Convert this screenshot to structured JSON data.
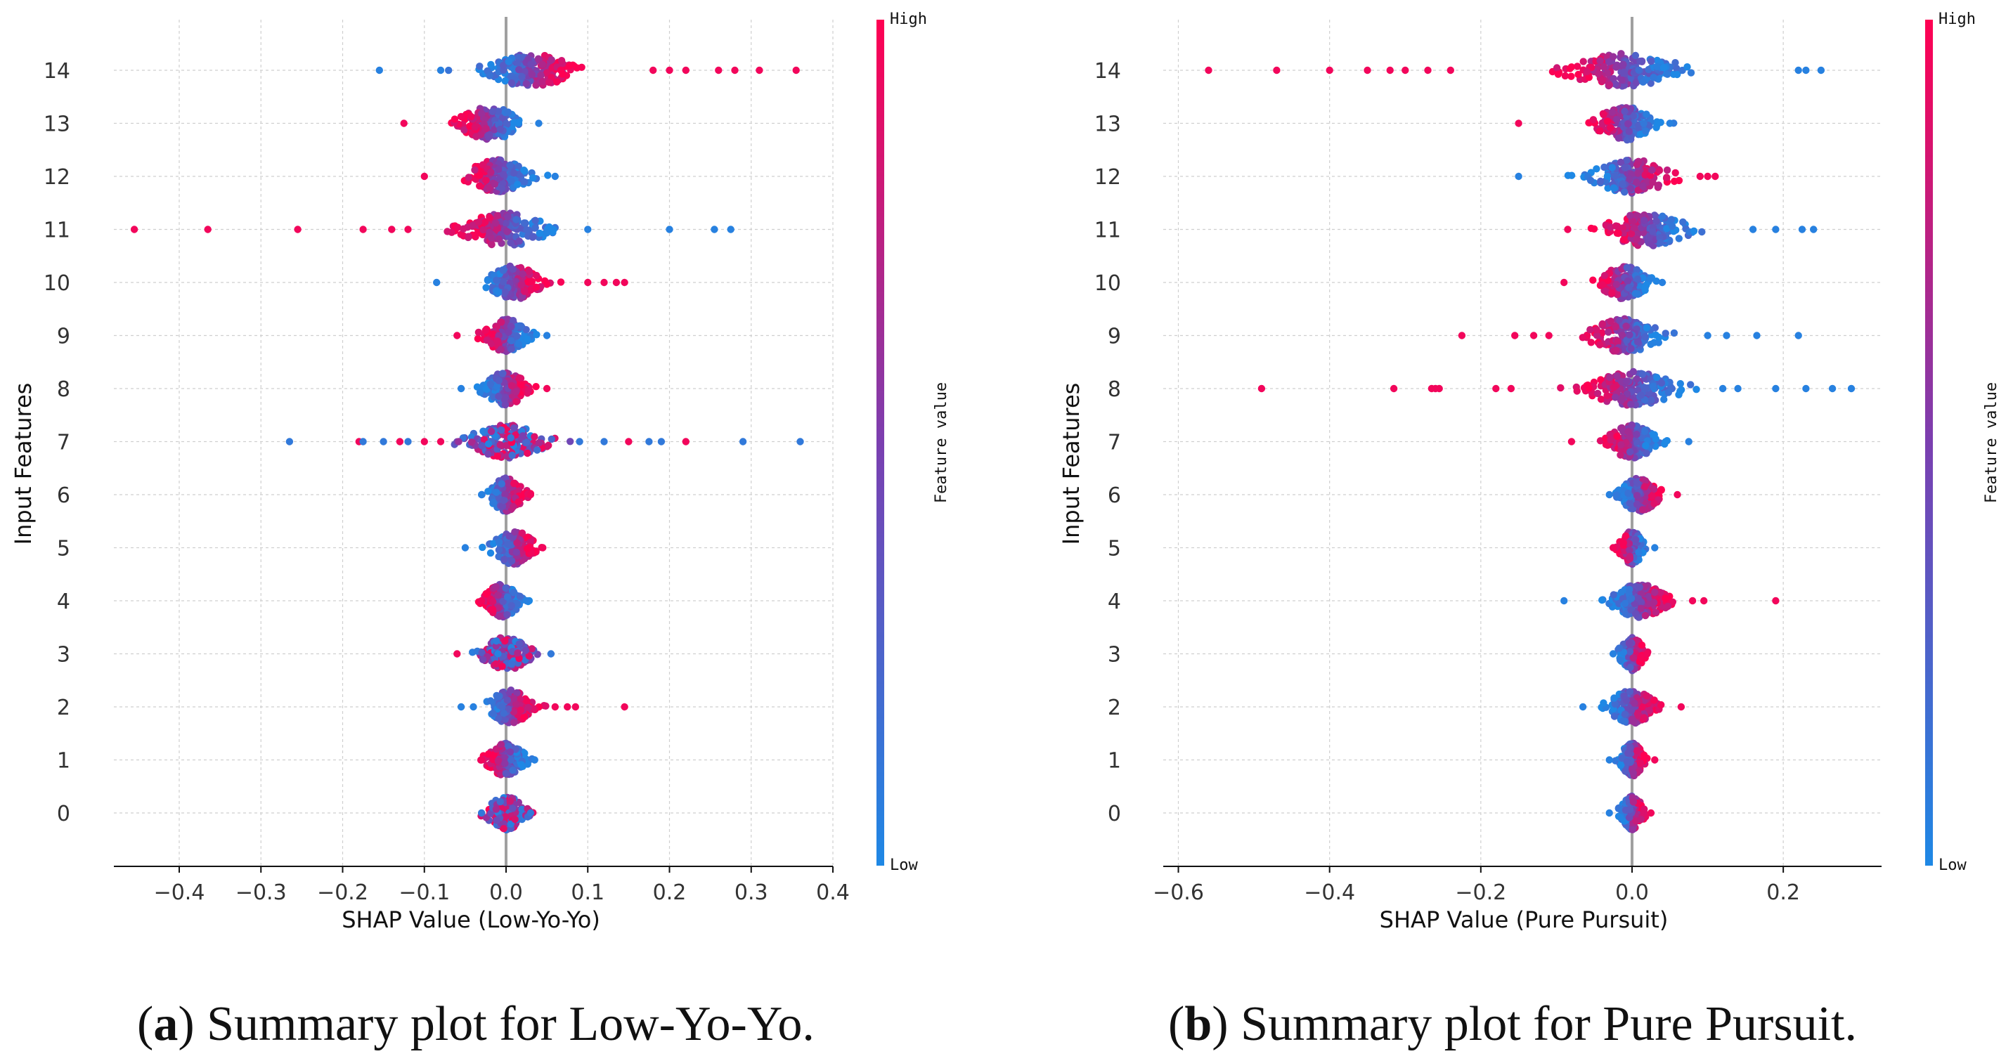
{
  "figure": {
    "captions": [
      {
        "tag": "a",
        "text": " Summary plot for Low-Yo-Yo."
      },
      {
        "tag": "b",
        "text": " Summary plot for Pure Pursuit."
      }
    ]
  },
  "colors": {
    "low": "#1e88e5",
    "mid": "#7b3fb0",
    "high": "#ff0052"
  },
  "chart_data": [
    {
      "type": "scatter",
      "subtype": "shap-beeswarm",
      "xlabel": "SHAP Value (Low-Yo-Yo)",
      "ylabel": "Input Features",
      "xlim": [
        -0.48,
        0.4
      ],
      "xticks": [
        -0.4,
        -0.3,
        -0.2,
        -0.1,
        0.0,
        0.1,
        0.2,
        0.3,
        0.4
      ],
      "xtick_labels": [
        "−0.4",
        "−0.3",
        "−0.2",
        "−0.1",
        "0.0",
        "0.1",
        "0.2",
        "0.3",
        "0.4"
      ],
      "features": [
        "0",
        "1",
        "2",
        "3",
        "4",
        "5",
        "6",
        "7",
        "8",
        "9",
        "10",
        "11",
        "12",
        "13",
        "14"
      ],
      "colorbar": {
        "title": "Feature value",
        "high": "High",
        "low": "Low"
      },
      "rows": [
        {
          "feature": "0",
          "lo": -0.035,
          "hi": 0.035,
          "spread": 0.022,
          "skew": 0.0,
          "dir": 0,
          "outliers": [
            -0.03,
            0.03
          ]
        },
        {
          "feature": "1",
          "lo": -0.035,
          "hi": 0.04,
          "spread": 0.022,
          "skew": 0.0,
          "dir": -1,
          "outliers": [
            -0.03,
            0.035
          ]
        },
        {
          "feature": "2",
          "lo": -0.06,
          "hi": 0.14,
          "spread": 0.025,
          "skew": 0.005,
          "dir": 1,
          "outliers": [
            -0.055,
            -0.04,
            0.06,
            0.075,
            0.085,
            0.145
          ]
        },
        {
          "feature": "3",
          "lo": -0.065,
          "hi": 0.06,
          "spread": 0.028,
          "skew": 0.0,
          "dir": 0,
          "outliers": [
            -0.06,
            0.055
          ]
        },
        {
          "feature": "4",
          "lo": -0.035,
          "hi": 0.03,
          "spread": 0.02,
          "skew": -0.005,
          "dir": -1,
          "outliers": [
            -0.03,
            0.025
          ]
        },
        {
          "feature": "5",
          "lo": -0.055,
          "hi": 0.05,
          "spread": 0.025,
          "skew": 0.01,
          "dir": 1,
          "outliers": [
            -0.05,
            0.045
          ]
        },
        {
          "feature": "6",
          "lo": -0.035,
          "hi": 0.03,
          "spread": 0.02,
          "skew": 0.0,
          "dir": 1,
          "outliers": [
            -0.03,
            0.03
          ]
        },
        {
          "feature": "7",
          "lo": -0.28,
          "hi": 0.36,
          "spread": 0.045,
          "skew": 0.0,
          "dir": 0,
          "outliers": [
            -0.265,
            -0.18,
            -0.175,
            -0.15,
            -0.13,
            -0.12,
            -0.1,
            -0.08,
            0.09,
            0.12,
            0.15,
            0.175,
            0.19,
            0.22,
            0.29,
            0.36
          ]
        },
        {
          "feature": "8",
          "lo": -0.06,
          "hi": 0.055,
          "spread": 0.025,
          "skew": 0.0,
          "dir": 1,
          "outliers": [
            -0.055,
            0.05
          ]
        },
        {
          "feature": "9",
          "lo": -0.065,
          "hi": 0.055,
          "spread": 0.025,
          "skew": 0.0,
          "dir": -1,
          "outliers": [
            -0.06,
            0.05
          ]
        },
        {
          "feature": "10",
          "lo": -0.09,
          "hi": 0.15,
          "spread": 0.03,
          "skew": 0.01,
          "dir": 1,
          "outliers": [
            -0.085,
            0.1,
            0.12,
            0.135,
            0.145
          ]
        },
        {
          "feature": "11",
          "lo": -0.46,
          "hi": 0.28,
          "spread": 0.05,
          "skew": 0.0,
          "dir": -1,
          "outliers": [
            -0.455,
            -0.365,
            -0.255,
            -0.175,
            -0.14,
            -0.12,
            0.1,
            0.2,
            0.255,
            0.275
          ]
        },
        {
          "feature": "12",
          "lo": -0.1,
          "hi": 0.065,
          "spread": 0.035,
          "skew": -0.01,
          "dir": -1,
          "outliers": [
            -0.1,
            0.06
          ]
        },
        {
          "feature": "13",
          "lo": -0.13,
          "hi": 0.045,
          "spread": 0.035,
          "skew": -0.02,
          "dir": -1,
          "outliers": [
            -0.125,
            0.04
          ]
        },
        {
          "feature": "14",
          "lo": -0.16,
          "hi": 0.36,
          "spread": 0.05,
          "skew": 0.03,
          "dir": 1,
          "outliers": [
            -0.155,
            -0.08,
            0.18,
            0.2,
            0.22,
            0.26,
            0.28,
            0.31,
            0.355
          ]
        }
      ]
    },
    {
      "type": "scatter",
      "subtype": "shap-beeswarm",
      "xlabel": "SHAP Value (Pure Pursuit)",
      "ylabel": "Input Features",
      "xlim": [
        -0.62,
        0.33
      ],
      "xticks": [
        -0.6,
        -0.4,
        -0.2,
        0.0,
        0.2
      ],
      "xtick_labels": [
        "−0.6",
        "−0.4",
        "−0.2",
        "0.0",
        "0.2"
      ],
      "features": [
        "0",
        "1",
        "2",
        "3",
        "4",
        "5",
        "6",
        "7",
        "8",
        "9",
        "10",
        "11",
        "12",
        "13",
        "14"
      ],
      "colorbar": {
        "title": "Feature value",
        "high": "High",
        "low": "Low"
      },
      "rows": [
        {
          "feature": "0",
          "lo": -0.03,
          "hi": 0.025,
          "spread": 0.015,
          "skew": 0.0,
          "dir": 1,
          "outliers": [
            -0.03,
            0.025
          ]
        },
        {
          "feature": "1",
          "lo": -0.03,
          "hi": 0.035,
          "spread": 0.015,
          "skew": 0.0,
          "dir": 1,
          "outliers": [
            -0.03,
            0.03
          ]
        },
        {
          "feature": "2",
          "lo": -0.065,
          "hi": 0.07,
          "spread": 0.03,
          "skew": 0.0,
          "dir": 1,
          "outliers": [
            -0.065,
            0.065
          ]
        },
        {
          "feature": "3",
          "lo": -0.03,
          "hi": 0.025,
          "spread": 0.015,
          "skew": 0.0,
          "dir": 1,
          "outliers": [
            -0.025,
            0.02
          ]
        },
        {
          "feature": "4",
          "lo": -0.095,
          "hi": 0.19,
          "spread": 0.035,
          "skew": 0.01,
          "dir": 1,
          "outliers": [
            -0.09,
            0.08,
            0.095,
            0.19
          ]
        },
        {
          "feature": "5",
          "lo": -0.03,
          "hi": 0.035,
          "spread": 0.015,
          "skew": 0.0,
          "dir": -1,
          "outliers": [
            -0.025,
            0.03
          ]
        },
        {
          "feature": "6",
          "lo": -0.035,
          "hi": 0.065,
          "spread": 0.025,
          "skew": 0.01,
          "dir": 1,
          "outliers": [
            -0.03,
            0.06
          ]
        },
        {
          "feature": "7",
          "lo": -0.085,
          "hi": 0.08,
          "spread": 0.03,
          "skew": 0.0,
          "dir": -1,
          "outliers": [
            -0.08,
            0.075
          ]
        },
        {
          "feature": "8",
          "lo": -0.49,
          "hi": 0.29,
          "spread": 0.06,
          "skew": 0.0,
          "dir": -1,
          "outliers": [
            -0.49,
            -0.315,
            -0.265,
            -0.26,
            -0.255,
            -0.18,
            -0.16,
            0.12,
            0.14,
            0.19,
            0.23,
            0.265,
            0.29
          ]
        },
        {
          "feature": "9",
          "lo": -0.225,
          "hi": 0.22,
          "spread": 0.045,
          "skew": -0.01,
          "dir": -1,
          "outliers": [
            -0.225,
            -0.155,
            -0.13,
            -0.11,
            0.1,
            0.125,
            0.165,
            0.22
          ]
        },
        {
          "feature": "10",
          "lo": -0.095,
          "hi": 0.045,
          "spread": 0.03,
          "skew": -0.01,
          "dir": -1,
          "outliers": [
            -0.09,
            0.04
          ]
        },
        {
          "feature": "11",
          "lo": -0.09,
          "hi": 0.245,
          "spread": 0.05,
          "skew": 0.02,
          "dir": -1,
          "outliers": [
            -0.085,
            0.16,
            0.19,
            0.225,
            0.24
          ]
        },
        {
          "feature": "12",
          "lo": -0.15,
          "hi": 0.11,
          "spread": 0.05,
          "skew": 0.0,
          "dir": 1,
          "outliers": [
            -0.15,
            0.09,
            0.1,
            0.11
          ]
        },
        {
          "feature": "13",
          "lo": -0.15,
          "hi": 0.055,
          "spread": 0.035,
          "skew": -0.01,
          "dir": -1,
          "outliers": [
            -0.15,
            0.05
          ]
        },
        {
          "feature": "14",
          "lo": -0.565,
          "hi": 0.25,
          "spread": 0.07,
          "skew": -0.01,
          "dir": -1,
          "outliers": [
            -0.56,
            -0.47,
            -0.4,
            -0.35,
            -0.32,
            -0.3,
            -0.27,
            -0.24,
            0.22,
            0.23,
            0.25
          ]
        }
      ]
    }
  ]
}
